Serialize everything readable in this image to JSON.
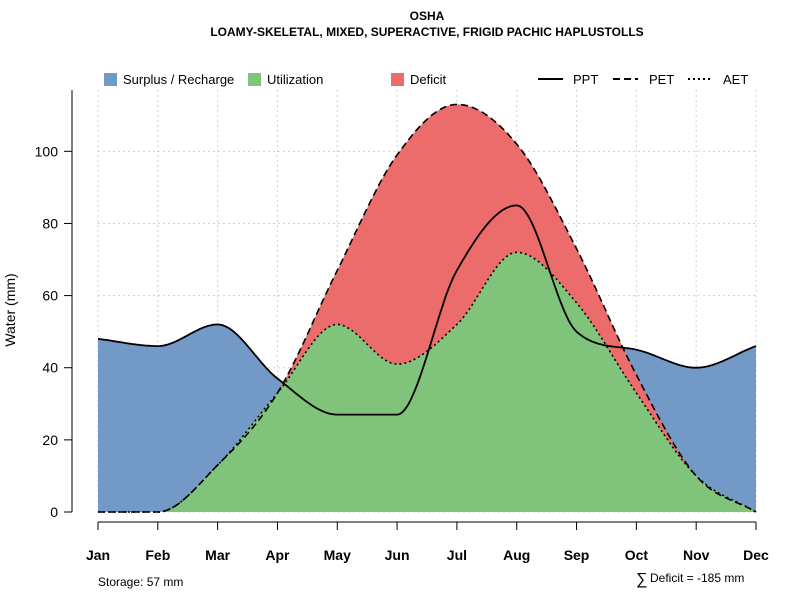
{
  "chart_data": {
    "type": "area",
    "title": "OSHA",
    "subtitle": "LOAMY-SKELETAL, MIXED, SUPERACTIVE, FRIGID PACHIC HAPLUSTOLLS",
    "xlabel": "",
    "ylabel": "Water (mm)",
    "categories": [
      "Jan",
      "Feb",
      "Mar",
      "Apr",
      "May",
      "Jun",
      "Jul",
      "Aug",
      "Sep",
      "Oct",
      "Nov",
      "Dec"
    ],
    "ylim": [
      0,
      117
    ],
    "yticks": [
      "0",
      "20",
      "40",
      "60",
      "80",
      "100"
    ],
    "grid": true,
    "legend": {
      "placement": "top",
      "areas": [
        {
          "name": "Surplus / Recharge",
          "color": "#7399c6"
        },
        {
          "name": "Utilization",
          "color": "#80c47b"
        },
        {
          "name": "Deficit",
          "color": "#ec6b6b"
        }
      ],
      "lines": [
        {
          "name": "PPT",
          "style": "solid"
        },
        {
          "name": "PET",
          "style": "dashed"
        },
        {
          "name": "AET",
          "style": "dotted"
        }
      ]
    },
    "series": [
      {
        "name": "PPT",
        "values": [
          48,
          46,
          52,
          37,
          27,
          27,
          67,
          85,
          50,
          45,
          40,
          46
        ]
      },
      {
        "name": "PET",
        "values": [
          0,
          0,
          13,
          33,
          67,
          99,
          113,
          102,
          73,
          38,
          10,
          0
        ]
      },
      {
        "name": "AET",
        "values": [
          0,
          0,
          13,
          33,
          52,
          41,
          52,
          72,
          58,
          33,
          10,
          0
        ]
      }
    ],
    "annotations": {
      "storage": "Storage: 57 mm",
      "deficit_symbol": "∑",
      "deficit": "Deficit = -185 mm"
    }
  }
}
